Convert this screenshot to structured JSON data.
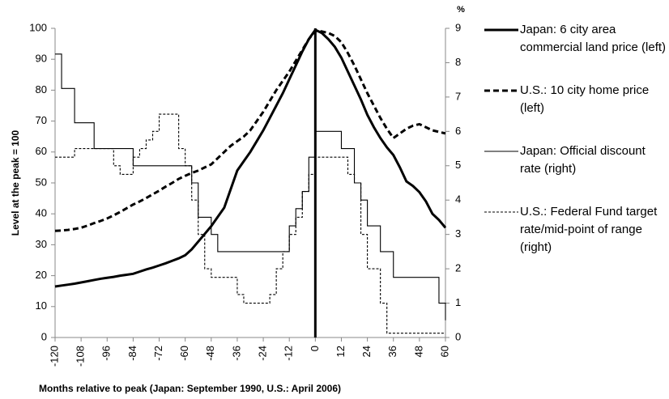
{
  "chart_data": {
    "type": "line",
    "x_label": "Months relative to peak (Japan: September 1990, U.S.: April 2006)",
    "y_label": "Level at the peak = 100",
    "y2_label": "%",
    "x": [
      -120,
      -117,
      -114,
      -111,
      -108,
      -105,
      -102,
      -99,
      -96,
      -93,
      -90,
      -87,
      -84,
      -81,
      -78,
      -75,
      -72,
      -69,
      -66,
      -63,
      -60,
      -57,
      -54,
      -51,
      -48,
      -45,
      -42,
      -39,
      -36,
      -33,
      -30,
      -27,
      -24,
      -21,
      -18,
      -15,
      -12,
      -9,
      -6,
      -3,
      0,
      3,
      6,
      9,
      12,
      15,
      18,
      21,
      24,
      27,
      30,
      33,
      36,
      39,
      42,
      45,
      48,
      51,
      54,
      57,
      60
    ],
    "xlim": [
      -120,
      60
    ],
    "xticks": [
      -120,
      -108,
      -96,
      -84,
      -72,
      -60,
      -48,
      -36,
      -24,
      -12,
      0,
      12,
      24,
      36,
      48,
      60
    ],
    "ylim": [
      0,
      100
    ],
    "yticks": [
      0,
      10,
      20,
      30,
      40,
      50,
      60,
      70,
      80,
      90,
      100
    ],
    "y2lim": [
      0,
      9
    ],
    "y2ticks": [
      0,
      1,
      2,
      3,
      4,
      5,
      6,
      7,
      8,
      9
    ],
    "series": [
      {
        "name": "Japan: 6 city area commercial land price (left)",
        "color": "#000000",
        "line_style": "solid",
        "line_weight": "thick",
        "values": [
          16.5,
          16.8,
          17.1,
          17.4,
          17.8,
          18.2,
          18.6,
          19,
          19.3,
          19.6,
          20,
          20.3,
          20.6,
          21.3,
          22,
          22.6,
          23.3,
          24,
          24.8,
          25.6,
          26.6,
          28.5,
          31,
          33.5,
          36,
          39,
          42,
          48,
          54,
          57,
          60,
          63.5,
          67,
          71,
          75,
          79,
          83.5,
          88,
          92.5,
          96.5,
          99.5,
          98.5,
          96.5,
          94,
          90.5,
          86,
          81.5,
          77,
          72,
          68,
          64.5,
          61.5,
          59,
          55,
          50.5,
          49,
          47,
          44,
          40,
          38,
          35.5
        ]
      },
      {
        "name": "U.S.: 10 city home price (left)",
        "color": "#000000",
        "line_style": "dashed",
        "line_weight": "thick",
        "values": [
          34.5,
          34.6,
          34.8,
          35.1,
          35.5,
          36.2,
          37,
          37.7,
          38.5,
          39.5,
          40.6,
          41.8,
          43,
          44,
          45.1,
          46.3,
          47.5,
          48.8,
          50,
          51.3,
          52.3,
          53.2,
          54,
          55,
          56,
          58,
          60,
          62,
          63.5,
          65,
          67,
          70,
          73,
          76.5,
          80,
          83,
          86,
          89.5,
          93,
          96.5,
          99.2,
          99,
          98.5,
          97.5,
          95.5,
          92,
          88,
          83.5,
          79,
          75,
          71,
          67.5,
          64.5,
          66,
          67.5,
          68.5,
          69,
          68,
          67,
          66.5,
          66
        ]
      },
      {
        "name": "Japan: Official discount rate (right)",
        "color": "#000000",
        "line_style": "solid",
        "line_weight": "thin",
        "axis": "y2",
        "step": true,
        "values": [
          8.25,
          7.25,
          7.25,
          6.25,
          6.25,
          6.25,
          5.5,
          5.5,
          5.5,
          5.5,
          5.5,
          5.5,
          5,
          5,
          5,
          5,
          5,
          5,
          5,
          5,
          5,
          4.5,
          3.5,
          3.5,
          3,
          2.5,
          2.5,
          2.5,
          2.5,
          2.5,
          2.5,
          2.5,
          2.5,
          2.5,
          2.5,
          2.5,
          3.25,
          3.75,
          4.25,
          5.25,
          6,
          6,
          6,
          6,
          5.5,
          5.5,
          4.5,
          4,
          3.25,
          3.25,
          2.5,
          2.5,
          1.75,
          1.75,
          1.75,
          1.75,
          1.75,
          1.75,
          1.75,
          1,
          0.5
        ]
      },
      {
        "name": "U.S.: Federal Fund target rate/mid-point of range (right)",
        "color": "#000000",
        "line_style": "dashed",
        "line_weight": "thin",
        "axis": "y2",
        "step": true,
        "values": [
          5.25,
          5.25,
          5.25,
          5.5,
          5.5,
          5.5,
          5.5,
          5.5,
          5.5,
          5,
          4.75,
          4.75,
          5.25,
          5.5,
          5.75,
          6,
          6.5,
          6.5,
          6.5,
          5.5,
          5,
          4,
          3,
          2,
          1.75,
          1.75,
          1.75,
          1.75,
          1.25,
          1,
          1,
          1,
          1,
          1.25,
          2,
          2.5,
          3,
          3.5,
          4.25,
          4.75,
          5.25,
          5.25,
          5.25,
          5.25,
          5.25,
          4.75,
          4.5,
          3,
          2,
          2,
          1,
          0.125,
          0.125,
          0.125,
          0.125,
          0.125,
          0.125,
          0.125,
          0.125,
          0.125,
          0.125
        ]
      }
    ],
    "peak_line": true
  }
}
